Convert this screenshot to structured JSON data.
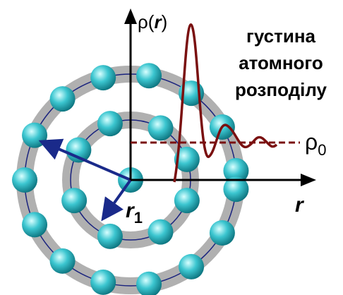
{
  "axis_labels": {
    "y": [
      "ρ(",
      "r",
      ")"
    ],
    "x": "r"
  },
  "caption": [
    "густина",
    "атомного",
    "розподілу"
  ],
  "reference": {
    "symbol": "ρ",
    "subscript": "0"
  },
  "radius": {
    "symbol": "r",
    "subscript": "1"
  }
}
